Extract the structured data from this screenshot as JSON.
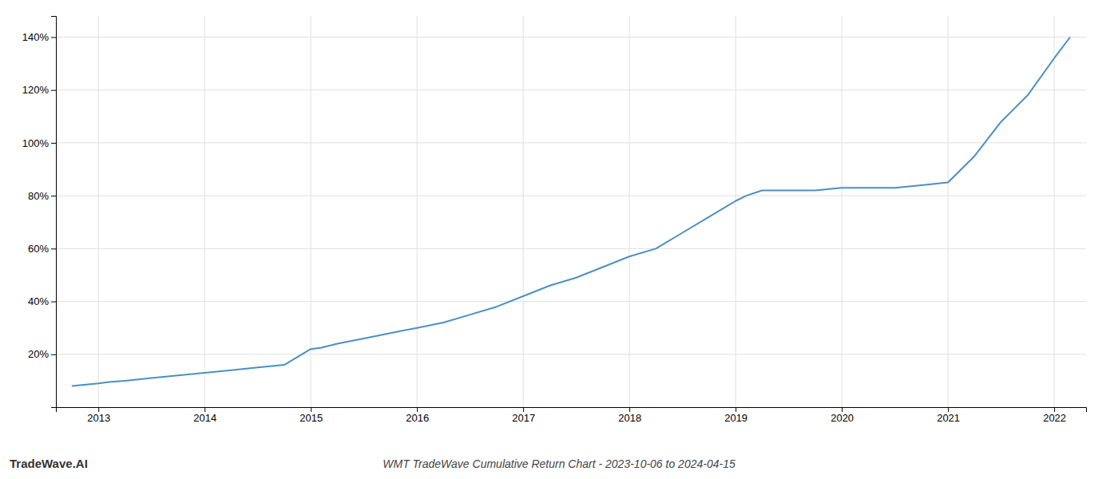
{
  "chart_data": {
    "type": "line",
    "title": "WMT TradeWave Cumulative Return Chart - 2023-10-06 to 2024-04-15",
    "annotations": [
      "TradeWave.AI"
    ],
    "color": "#4a90c4",
    "grid": true,
    "x": [
      2012.75,
      2013.0,
      2013.1,
      2013.25,
      2013.5,
      2013.75,
      2014.0,
      2014.25,
      2014.5,
      2014.75,
      2015.0,
      2015.1,
      2015.25,
      2015.5,
      2015.75,
      2016.0,
      2016.25,
      2016.5,
      2016.75,
      2017.0,
      2017.25,
      2017.5,
      2017.75,
      2018.0,
      2018.25,
      2018.5,
      2018.75,
      2019.0,
      2019.1,
      2019.25,
      2019.5,
      2019.75,
      2020.0,
      2020.25,
      2020.5,
      2020.75,
      2021.0,
      2021.25,
      2021.5,
      2021.75,
      2022.0,
      2022.15
    ],
    "values": [
      8,
      9,
      9.5,
      10,
      11,
      12,
      13,
      14,
      15,
      16,
      22,
      22.5,
      24,
      26,
      28,
      30,
      32,
      35,
      38,
      42,
      46,
      49,
      53,
      57,
      60,
      66,
      72,
      78,
      80,
      82,
      82,
      82,
      83,
      83,
      83,
      84,
      85,
      95,
      108,
      118,
      132,
      140
    ],
    "xlim": [
      2012.6,
      2022.3
    ],
    "xticks": [
      2013,
      2014,
      2015,
      2016,
      2017,
      2018,
      2019,
      2020,
      2021,
      2022
    ],
    "ylim": [
      0,
      148
    ],
    "yticks": [
      {
        "value": 20,
        "label": "20%"
      },
      {
        "value": 40,
        "label": "40%"
      },
      {
        "value": 60,
        "label": "60%"
      },
      {
        "value": 80,
        "label": "80%"
      },
      {
        "value": 100,
        "label": "100%"
      },
      {
        "value": 120,
        "label": "120%"
      },
      {
        "value": 140,
        "label": "140%"
      }
    ]
  }
}
